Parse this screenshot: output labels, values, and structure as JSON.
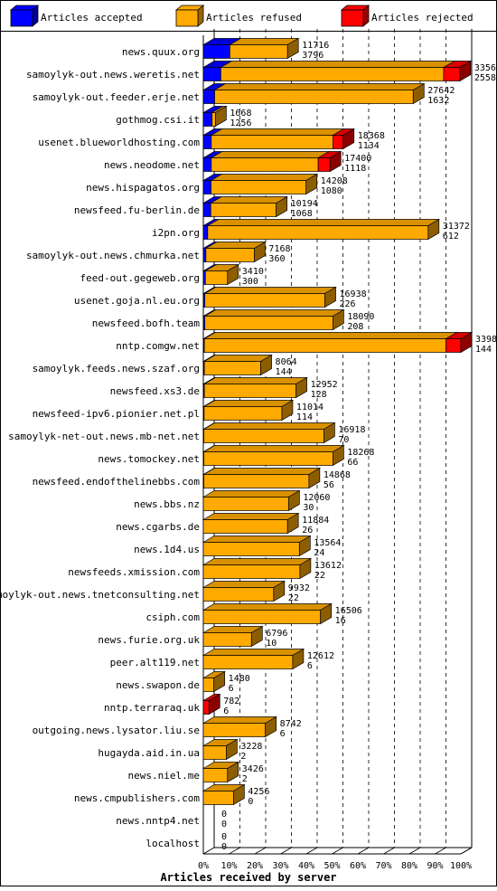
{
  "chart_data": {
    "type": "bar",
    "orientation": "horizontal",
    "stacked": true,
    "style": "3d",
    "xlabel": "Articles received by server",
    "x_tick_labels": [
      "0%",
      "10%",
      "20%",
      "30%",
      "40%",
      "50%",
      "60%",
      "70%",
      "80%",
      "90%",
      "100%"
    ],
    "xlim": [
      0,
      100
    ],
    "grid": "vertical dashed",
    "legend_position": "top",
    "series": [
      {
        "name": "Articles accepted",
        "color": "#0000ff"
      },
      {
        "name": "Articles refused",
        "color": "#ffaa00"
      },
      {
        "name": "Articles rejected",
        "color": "#ff0000"
      }
    ],
    "rows": [
      {
        "server": "news.quux.org",
        "accepted_pct": 10.3,
        "refused_pct": 22.4,
        "rejected_pct": 0,
        "label_top": "11716",
        "label_bottom": "3796"
      },
      {
        "server": "samoylyk-out.news.weretis.net",
        "accepted_pct": 6.8,
        "refused_pct": 86.5,
        "rejected_pct": 6.3,
        "label_top": "33564",
        "label_bottom": "2558"
      },
      {
        "server": "samoylyk-out.feeder.erje.net",
        "accepted_pct": 4.4,
        "refused_pct": 77.1,
        "rejected_pct": 0,
        "label_top": "27642",
        "label_bottom": "1632"
      },
      {
        "server": "gothmog.csi.it",
        "accepted_pct": 3.4,
        "refused_pct": 1.3,
        "rejected_pct": 0,
        "label_top": "1668",
        "label_bottom": "1256"
      },
      {
        "server": "usenet.blueworldhosting.com",
        "accepted_pct": 3.1,
        "refused_pct": 47.2,
        "rejected_pct": 4.0,
        "label_top": "18368",
        "label_bottom": "1134"
      },
      {
        "server": "news.neodome.net",
        "accepted_pct": 3.1,
        "refused_pct": 41.5,
        "rejected_pct": 4.6,
        "label_top": "17400",
        "label_bottom": "1118"
      },
      {
        "server": "news.hispagatos.org",
        "accepted_pct": 3.0,
        "refused_pct": 36.9,
        "rejected_pct": 0,
        "label_top": "14208",
        "label_bottom": "1080"
      },
      {
        "server": "newsfeed.fu-berlin.de",
        "accepted_pct": 2.9,
        "refused_pct": 25.4,
        "rejected_pct": 0,
        "label_top": "10194",
        "label_bottom": "1068"
      },
      {
        "server": "i2pn.org",
        "accepted_pct": 1.7,
        "refused_pct": 85.6,
        "rejected_pct": 0,
        "label_top": "31372",
        "label_bottom": "612"
      },
      {
        "server": "samoylyk-out.news.chmurka.net",
        "accepted_pct": 1.0,
        "refused_pct": 18.8,
        "rejected_pct": 0,
        "label_top": "7168",
        "label_bottom": "360"
      },
      {
        "server": "feed-out.gegeweb.org",
        "accepted_pct": 0.8,
        "refused_pct": 8.6,
        "rejected_pct": 0,
        "label_top": "3410",
        "label_bottom": "300"
      },
      {
        "server": "usenet.goja.nl.eu.org",
        "accepted_pct": 0.6,
        "refused_pct": 46.6,
        "rejected_pct": 0,
        "label_top": "16938",
        "label_bottom": "226"
      },
      {
        "server": "newsfeed.bofh.team",
        "accepted_pct": 0.6,
        "refused_pct": 49.7,
        "rejected_pct": 0,
        "label_top": "18090",
        "label_bottom": "208"
      },
      {
        "server": "nntp.comgw.net",
        "accepted_pct": 0.4,
        "refused_pct": 93.8,
        "rejected_pct": 5.8,
        "label_top": "33980",
        "label_bottom": "144"
      },
      {
        "server": "samoylyk.feeds.news.szaf.org",
        "accepted_pct": 0.4,
        "refused_pct": 21.9,
        "rejected_pct": 0,
        "label_top": "8064",
        "label_bottom": "144"
      },
      {
        "server": "newsfeed.xs3.de",
        "accepted_pct": 0.4,
        "refused_pct": 35.6,
        "rejected_pct": 0,
        "label_top": "12952",
        "label_bottom": "128"
      },
      {
        "server": "newsfeed-ipv6.pionier.net.pl",
        "accepted_pct": 0.3,
        "refused_pct": 30.2,
        "rejected_pct": 0,
        "label_top": "11014",
        "label_bottom": "114"
      },
      {
        "server": "samoylyk-net-out.news.mb-net.net",
        "accepted_pct": 0.2,
        "refused_pct": 46.6,
        "rejected_pct": 0,
        "label_top": "16918",
        "label_bottom": "70"
      },
      {
        "server": "news.tomockey.net",
        "accepted_pct": 0.2,
        "refused_pct": 50.1,
        "rejected_pct": 0,
        "label_top": "18268",
        "label_bottom": "66"
      },
      {
        "server": "newsfeed.endofthelinebbs.com",
        "accepted_pct": 0.2,
        "refused_pct": 40.8,
        "rejected_pct": 0,
        "label_top": "14868",
        "label_bottom": "56"
      },
      {
        "server": "news.bbs.nz",
        "accepted_pct": 0.1,
        "refused_pct": 33.1,
        "rejected_pct": 0,
        "label_top": "12060",
        "label_bottom": "30"
      },
      {
        "server": "news.cgarbs.de",
        "accepted_pct": 0.1,
        "refused_pct": 32.7,
        "rejected_pct": 0,
        "label_top": "11884",
        "label_bottom": "26"
      },
      {
        "server": "news.1d4.us",
        "accepted_pct": 0.1,
        "refused_pct": 37.3,
        "rejected_pct": 0,
        "label_top": "13564",
        "label_bottom": "24"
      },
      {
        "server": "newsfeeds.xmission.com",
        "accepted_pct": 0.1,
        "refused_pct": 37.5,
        "rejected_pct": 0,
        "label_top": "13612",
        "label_bottom": "22"
      },
      {
        "server": "samoylyk-out.news.tnetconsulting.net",
        "accepted_pct": 0.1,
        "refused_pct": 27.3,
        "rejected_pct": 0,
        "label_top": "9932",
        "label_bottom": "22"
      },
      {
        "server": "csiph.com",
        "accepted_pct": 0.1,
        "refused_pct": 45.5,
        "rejected_pct": 0,
        "label_top": "16506",
        "label_bottom": "16"
      },
      {
        "server": "news.furie.org.uk",
        "accepted_pct": 0.0,
        "refused_pct": 18.7,
        "rejected_pct": 0,
        "label_top": "6796",
        "label_bottom": "10"
      },
      {
        "server": "peer.alt119.net",
        "accepted_pct": 0.0,
        "refused_pct": 34.7,
        "rejected_pct": 0,
        "label_top": "12612",
        "label_bottom": "6"
      },
      {
        "server": "news.swapon.de",
        "accepted_pct": 0.0,
        "refused_pct": 4.1,
        "rejected_pct": 0,
        "label_top": "1480",
        "label_bottom": "6"
      },
      {
        "server": "nntp.terraraq.uk",
        "accepted_pct": 0.0,
        "refused_pct": 0,
        "rejected_pct": 2.2,
        "label_top": "782",
        "label_bottom": "6"
      },
      {
        "server": "outgoing.news.lysator.liu.se",
        "accepted_pct": 0.0,
        "refused_pct": 24.1,
        "rejected_pct": 0,
        "label_top": "8742",
        "label_bottom": "6"
      },
      {
        "server": "hugayda.aid.in.ua",
        "accepted_pct": 0.0,
        "refused_pct": 8.9,
        "rejected_pct": 0,
        "label_top": "3228",
        "label_bottom": "2"
      },
      {
        "server": "news.niel.me",
        "accepted_pct": 0.0,
        "refused_pct": 9.4,
        "rejected_pct": 0,
        "label_top": "3426",
        "label_bottom": "2"
      },
      {
        "server": "news.cmpublishers.com",
        "accepted_pct": 0.0,
        "refused_pct": 11.7,
        "rejected_pct": 0,
        "label_top": "4256",
        "label_bottom": "0"
      },
      {
        "server": "news.nntp4.net",
        "accepted_pct": 0,
        "refused_pct": 0,
        "rejected_pct": 0,
        "label_top": "0",
        "label_bottom": "0"
      },
      {
        "server": "localhost",
        "accepted_pct": 0,
        "refused_pct": 0,
        "rejected_pct": 0,
        "label_top": "0",
        "label_bottom": "0"
      }
    ]
  }
}
